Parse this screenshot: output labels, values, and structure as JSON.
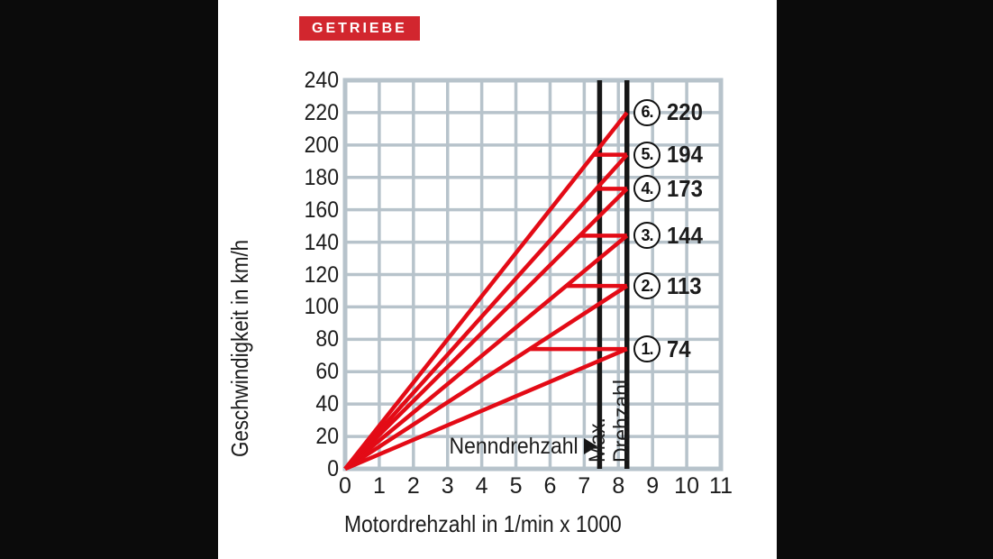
{
  "banner": {
    "label": "GETRIEBE",
    "bg_color": "#d2262e"
  },
  "chart_data": {
    "type": "line",
    "xlabel": "Motordrehzahl in 1/min x 1000",
    "ylabel": "Geschwindigkeit in km/h",
    "xlim": [
      0,
      11
    ],
    "ylim": [
      0,
      240
    ],
    "x_ticks": [
      0,
      1,
      2,
      3,
      4,
      5,
      6,
      7,
      8,
      9,
      10,
      11
    ],
    "y_ticks": [
      0,
      20,
      40,
      60,
      80,
      100,
      120,
      140,
      160,
      180,
      200,
      220,
      240
    ],
    "grid": true,
    "legend_position": "none",
    "line_color": "#e30b16",
    "grid_color": "#b7c3cb",
    "marker_line_color": "#161616",
    "nenndrehzahl": {
      "label": "Nenndrehzahl",
      "x": 7.45
    },
    "max_drehzahl": {
      "label_lines": [
        "Max.",
        "Drehzahl"
      ],
      "x": 8.25
    },
    "gears": [
      {
        "gear": "1.",
        "top_speed_kmh": 74
      },
      {
        "gear": "2.",
        "top_speed_kmh": 113
      },
      {
        "gear": "3.",
        "top_speed_kmh": 144
      },
      {
        "gear": "4.",
        "top_speed_kmh": 173
      },
      {
        "gear": "5.",
        "top_speed_kmh": 194
      },
      {
        "gear": "6.",
        "top_speed_kmh": 220
      }
    ]
  }
}
